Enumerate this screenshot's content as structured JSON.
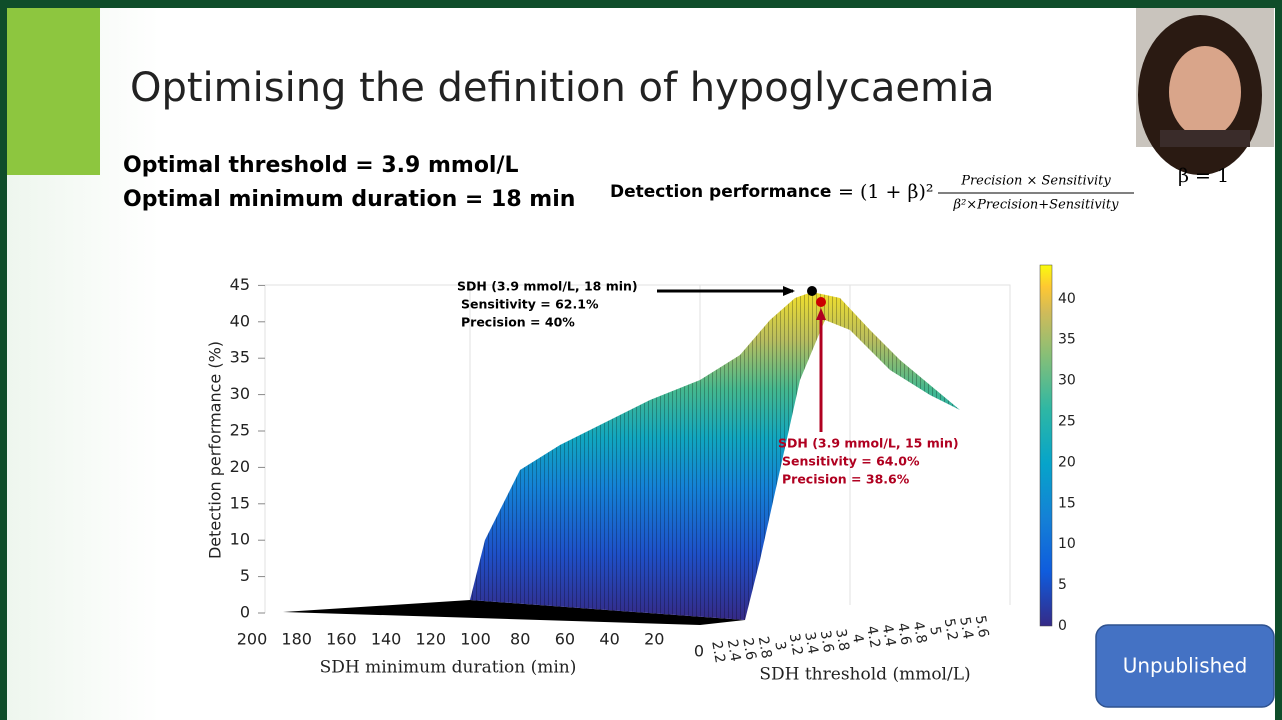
{
  "slide": {
    "title": "Optimising the definition of hypoglycaemia",
    "points": [
      "Optimal threshold = 3.9 mmol/L",
      "Optimal minimum duration = 18 min"
    ],
    "formula": {
      "label": "Detection performance",
      "lhs": "= (1 + β)²",
      "numerator": "Precision × Sensitivity",
      "denominator": "β²×Precision+Sensitivity",
      "beta": "β = 1"
    },
    "chart": {
      "z_label": "Detection performance (%)",
      "z_ticks": [
        "0",
        "5",
        "10",
        "15",
        "20",
        "25",
        "30",
        "35",
        "40",
        "45"
      ],
      "x_label": "SDH minimum duration (min)",
      "x_ticks": [
        "200",
        "180",
        "160",
        "140",
        "120",
        "100",
        "80",
        "60",
        "40",
        "20",
        "0"
      ],
      "y_label": "SDH threshold (mmol/L)",
      "y_ticks": [
        "2.2",
        "2.4",
        "2.6",
        "2.8",
        "3",
        "3.2",
        "3.4",
        "3.6",
        "3.8",
        "4",
        "4.2",
        "4.4",
        "4.6",
        "4.8",
        "5",
        "5.2",
        "5.4",
        "5.6"
      ],
      "colorbar_ticks": [
        "0",
        "5",
        "10",
        "15",
        "20",
        "25",
        "30",
        "35",
        "40"
      ],
      "annotation_best": [
        "SDH (3.9 mmol/L, 18 min)",
        "Sensitivity = 62.1%",
        "Precision = 40%"
      ],
      "annotation_alt": [
        "SDH (3.9 mmol/L, 15 min)",
        "Sensitivity = 64.0%",
        "Precision = 38.6%"
      ]
    },
    "badge": "Unpublished"
  }
}
